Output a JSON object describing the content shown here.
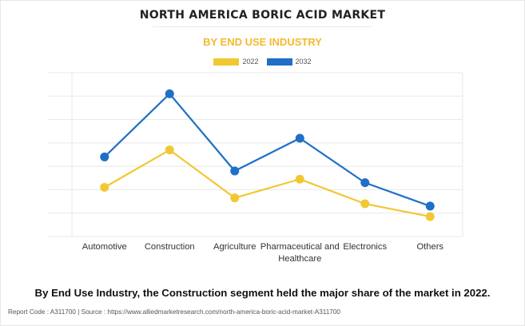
{
  "header": {
    "title": "NORTH AMERICA BORIC ACID MARKET",
    "subtitle": "BY END USE INDUSTRY"
  },
  "colors": {
    "accent": "#f5b82e",
    "series_2022": "#f2c832",
    "series_2032": "#1f6fc6",
    "grid": "#e8e8e8"
  },
  "chart_data": {
    "type": "line",
    "title": "",
    "xlabel": "",
    "ylabel": "",
    "grid": true,
    "legend_position": "top-center",
    "categories": [
      "Automotive",
      "Construction",
      "Agriculture",
      "Pharmaceutical and Healthcare",
      "Electronics",
      "Others"
    ],
    "category_label_lines": [
      [
        "Automotive"
      ],
      [
        "Construction"
      ],
      [
        "Agriculture"
      ],
      [
        "Pharmaceutical and",
        "Healthcare"
      ],
      [
        "Electronics"
      ],
      [
        "Others"
      ]
    ],
    "ylim": [
      0,
      7
    ],
    "yticks": [
      0,
      1,
      2,
      3,
      4,
      5,
      6,
      7
    ],
    "series": [
      {
        "name": "2022",
        "color": "#f2c832",
        "values": [
          2.1,
          3.7,
          1.65,
          2.45,
          1.4,
          0.85
        ]
      },
      {
        "name": "2032",
        "color": "#1f6fc6",
        "values": [
          3.4,
          6.1,
          2.8,
          4.2,
          2.3,
          1.3
        ]
      }
    ]
  },
  "caption": "By End Use Industry, the Construction segment held the major share of the market in 2022.",
  "footer": "Report Code : A311700  |  Source : https://www.alliedmarketresearch.com/north-america-boric-acid-market-A311700"
}
